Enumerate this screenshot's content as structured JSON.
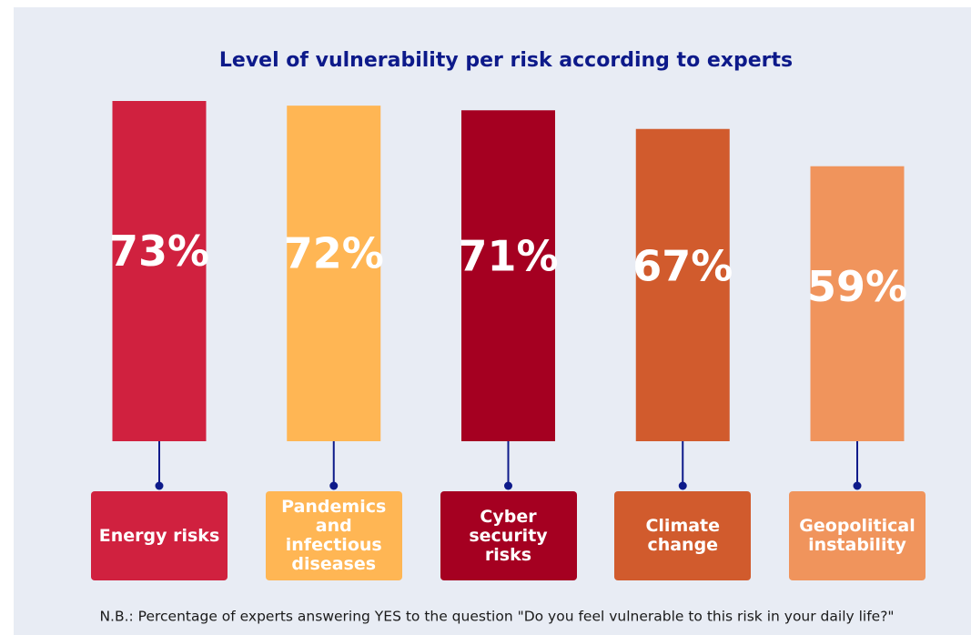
{
  "chart_data": {
    "type": "bar",
    "title": "Level of vulnerability per risk according to experts",
    "categories": [
      "Energy risks",
      "Pandemics and infectious diseases",
      "Cyber security risks",
      "Climate change",
      "Geopolitical instability"
    ],
    "values": [
      73,
      72,
      71,
      67,
      59
    ],
    "value_labels": [
      "73%",
      "72%",
      "71%",
      "67%",
      "59%"
    ],
    "colors": [
      "#d0213f",
      "#ffb654",
      "#a50021",
      "#d15b2d",
      "#f0945c"
    ],
    "note": "N.B.: Percentage of experts answering YES to the question \"Do you feel vulnerable to this risk in your daily life?\""
  }
}
